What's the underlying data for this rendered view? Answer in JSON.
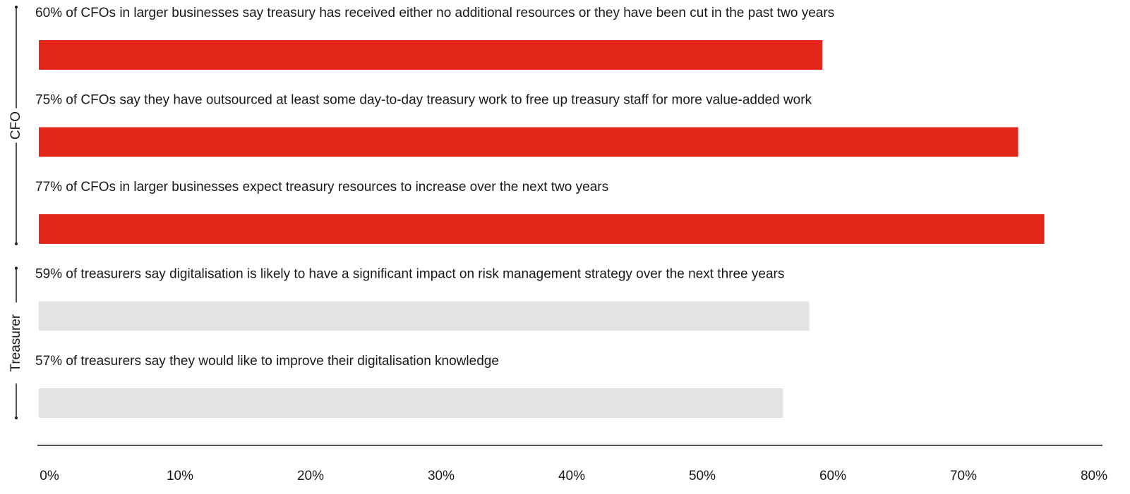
{
  "chart_data": {
    "type": "bar",
    "orientation": "horizontal",
    "categories": [
      "60% of CFOs in larger businesses say treasury has received either no additional resources or they have been cut in the past two years",
      "75% of CFOs say they have outsourced at least some day-to-day treasury work to free up treasury staff for more value-added work",
      "77% of CFOs in larger businesses expect treasury resources to increase over the next two years",
      "59% of treasurers say digitalisation is likely to have a significant impact on risk management strategy over the next three years",
      "57% of treasurers say they would like to improve their digitalisation knowledge"
    ],
    "values": [
      60,
      75,
      77,
      59,
      57
    ],
    "groups": [
      {
        "label": "CFO",
        "color": "#e32719",
        "members": [
          0,
          1,
          2
        ]
      },
      {
        "label": "Treasurer",
        "color": "#e3e3e3",
        "members": [
          3,
          4
        ]
      }
    ],
    "xlim": [
      0,
      80
    ],
    "xticks": [
      {
        "value": 0,
        "label": "0%"
      },
      {
        "value": 10,
        "label": "10%"
      },
      {
        "value": 20,
        "label": "20%"
      },
      {
        "value": 30,
        "label": "30%"
      },
      {
        "value": 40,
        "label": "40%"
      },
      {
        "value": 50,
        "label": "50%"
      },
      {
        "value": 60,
        "label": "60%"
      },
      {
        "value": 70,
        "label": "70%"
      },
      {
        "value": 80,
        "label": "80%"
      }
    ],
    "grid": false
  }
}
